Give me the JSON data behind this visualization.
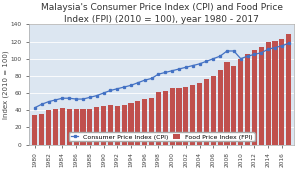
{
  "title": "Malaysia's Consumer Price Index (CPI) and Food Price\nIndex (FPI) (2010 = 100), year 1980 - 2017",
  "ylabel": "Index (2010 = 100)",
  "ylim": [
    0,
    140
  ],
  "yticks": [
    0.0,
    20.0,
    40.0,
    60.0,
    80.0,
    100.0,
    120.0,
    140.0
  ],
  "years": [
    1980,
    1981,
    1982,
    1983,
    1984,
    1985,
    1986,
    1987,
    1988,
    1989,
    1990,
    1991,
    1992,
    1993,
    1994,
    1995,
    1996,
    1997,
    1998,
    1999,
    2000,
    2001,
    2002,
    2003,
    2004,
    2005,
    2006,
    2007,
    2008,
    2009,
    2010,
    2011,
    2012,
    2013,
    2014,
    2015,
    2016,
    2017
  ],
  "fpi": [
    34,
    36,
    40,
    42,
    43,
    42,
    41,
    41,
    42,
    44,
    45,
    46,
    45,
    46,
    48,
    51,
    53,
    54,
    61,
    62,
    66,
    66,
    67,
    69,
    72,
    76,
    80,
    87,
    96,
    92,
    100,
    106,
    110,
    114,
    119,
    121,
    123,
    129
  ],
  "cpi": [
    43,
    47,
    50,
    52,
    54,
    54,
    53,
    53,
    55,
    57,
    60,
    63,
    65,
    67,
    69,
    72,
    75,
    77,
    82,
    84,
    86,
    88,
    90,
    92,
    94,
    97,
    100,
    103,
    109,
    109,
    100,
    103,
    105,
    107,
    111,
    113,
    115,
    118
  ],
  "bar_color": "#c0504d",
  "line_color": "#4472c4",
  "bg_color": "#ffffff",
  "plot_bg": "#dce6f1",
  "legend_fpi": "Food Price Index (FPI)",
  "legend_cpi": "Consumer Price Index (CPI)",
  "title_fontsize": 6.5,
  "axis_fontsize": 5,
  "tick_fontsize": 4.2,
  "legend_fontsize": 4.5
}
